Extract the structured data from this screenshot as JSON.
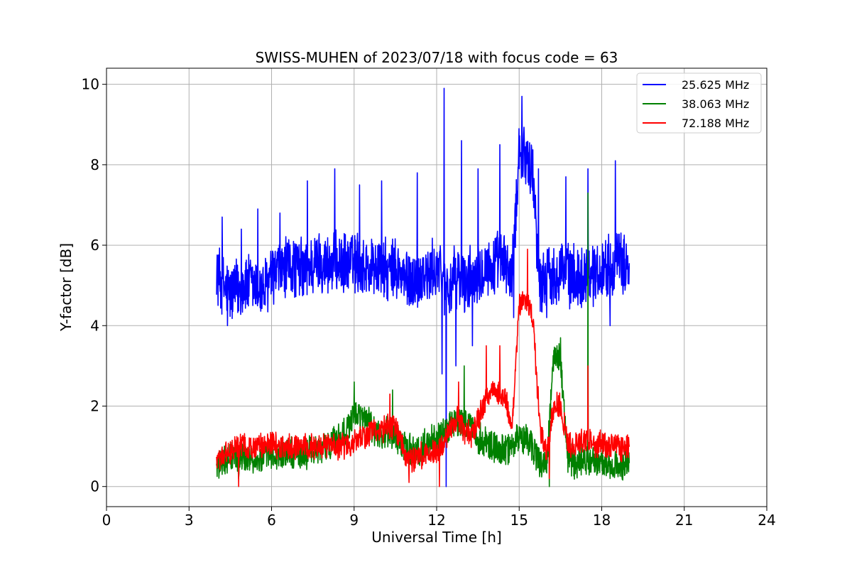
{
  "chart_data": {
    "type": "line",
    "title": "SWISS-MUHEN of 2023/07/18 with focus code = 63",
    "xlabel": "Universal Time [h]",
    "ylabel": "Y-factor [dB]",
    "xlim": [
      0,
      24
    ],
    "ylim": [
      -0.5,
      10.4
    ],
    "xticks": [
      0,
      3,
      6,
      9,
      12,
      15,
      18,
      21,
      24
    ],
    "yticks": [
      0,
      2,
      4,
      6,
      8,
      10
    ],
    "grid": true,
    "legend_position": "top-right",
    "series": [
      {
        "name": "25.625 MHz",
        "color": "#0000ff",
        "x": [
          4.0,
          4.25,
          4.5,
          4.75,
          5.0,
          5.25,
          5.5,
          5.75,
          6.0,
          6.25,
          6.5,
          6.75,
          7.0,
          7.25,
          7.5,
          7.75,
          8.0,
          8.25,
          8.5,
          8.75,
          9.0,
          9.25,
          9.5,
          9.75,
          10.0,
          10.25,
          10.5,
          10.75,
          11.0,
          11.25,
          11.5,
          11.75,
          12.0,
          12.25,
          12.5,
          12.75,
          13.0,
          13.25,
          13.5,
          13.75,
          14.0,
          14.25,
          14.5,
          14.75,
          15.0,
          15.25,
          15.5,
          15.75,
          16.0,
          16.25,
          16.5,
          16.75,
          17.0,
          17.25,
          17.5,
          17.75,
          18.0,
          18.25,
          18.5,
          18.75,
          19.0
        ],
        "y": [
          5.3,
          5.0,
          4.8,
          4.9,
          5.0,
          5.0,
          4.9,
          4.9,
          5.2,
          5.3,
          5.4,
          5.5,
          5.4,
          5.4,
          5.5,
          5.6,
          5.5,
          5.6,
          5.5,
          5.5,
          5.6,
          5.5,
          5.4,
          5.5,
          5.4,
          5.3,
          5.4,
          5.2,
          5.1,
          5.1,
          5.3,
          5.2,
          5.5,
          5.1,
          4.9,
          5.3,
          5.0,
          5.2,
          5.4,
          5.5,
          5.4,
          5.6,
          5.5,
          5.2,
          8.5,
          8.2,
          7.8,
          5.0,
          5.3,
          5.2,
          5.5,
          5.3,
          5.2,
          5.2,
          5.4,
          5.3,
          5.4,
          5.5,
          5.6,
          5.5,
          5.6
        ],
        "spikes": [
          [
            4.2,
            6.7
          ],
          [
            4.9,
            6.4
          ],
          [
            5.5,
            6.9
          ],
          [
            6.3,
            6.8
          ],
          [
            7.3,
            7.6
          ],
          [
            8.3,
            7.9
          ],
          [
            9.2,
            7.5
          ],
          [
            10.0,
            7.6
          ],
          [
            11.3,
            7.8
          ],
          [
            12.27,
            9.9
          ],
          [
            12.9,
            8.6
          ],
          [
            13.5,
            7.9
          ],
          [
            14.3,
            8.5
          ],
          [
            15.1,
            9.7
          ],
          [
            15.7,
            7.9
          ],
          [
            16.7,
            7.7
          ],
          [
            17.5,
            7.9
          ],
          [
            18.5,
            8.1
          ]
        ],
        "dips": [
          [
            4.4,
            4.0
          ],
          [
            12.2,
            2.8
          ],
          [
            12.35,
            0.0
          ],
          [
            12.7,
            3.0
          ],
          [
            13.3,
            3.5
          ],
          [
            14.8,
            4.2
          ],
          [
            16.0,
            4.2
          ],
          [
            18.3,
            4.0
          ]
        ]
      },
      {
        "name": "38.063 MHz",
        "color": "#008000",
        "x": [
          4.0,
          4.25,
          4.5,
          4.75,
          5.0,
          5.25,
          5.5,
          5.75,
          6.0,
          6.25,
          6.5,
          6.75,
          7.0,
          7.25,
          7.5,
          7.75,
          8.0,
          8.25,
          8.5,
          8.75,
          9.0,
          9.25,
          9.5,
          9.75,
          10.0,
          10.25,
          10.5,
          10.75,
          11.0,
          11.25,
          11.5,
          11.75,
          12.0,
          12.25,
          12.5,
          12.75,
          13.0,
          13.25,
          13.5,
          13.75,
          14.0,
          14.25,
          14.5,
          14.75,
          15.0,
          15.25,
          15.5,
          15.75,
          16.0,
          16.25,
          16.5,
          16.75,
          17.0,
          17.25,
          17.5,
          17.75,
          18.0,
          18.25,
          18.5,
          18.75,
          19.0
        ],
        "y": [
          0.6,
          0.6,
          0.7,
          0.7,
          0.7,
          0.7,
          0.7,
          0.7,
          0.8,
          0.8,
          0.8,
          0.8,
          0.8,
          0.8,
          0.9,
          0.9,
          1.0,
          1.1,
          1.3,
          1.4,
          1.8,
          1.7,
          1.6,
          1.3,
          1.2,
          1.4,
          1.3,
          1.0,
          0.9,
          0.9,
          1.0,
          1.1,
          1.2,
          1.3,
          1.5,
          1.6,
          1.6,
          1.4,
          1.2,
          1.1,
          1.0,
          0.9,
          0.9,
          1.0,
          1.3,
          1.2,
          1.0,
          0.6,
          0.5,
          3.2,
          3.2,
          0.7,
          0.6,
          0.6,
          0.7,
          0.6,
          0.6,
          0.5,
          0.5,
          0.5,
          0.6
        ],
        "spikes": [
          [
            9.0,
            2.6
          ],
          [
            10.4,
            2.4
          ],
          [
            13.0,
            3.0
          ],
          [
            16.5,
            3.7
          ],
          [
            17.5,
            7.3
          ]
        ],
        "dips": [
          [
            4.8,
            0.2
          ],
          [
            16.1,
            0.0
          ],
          [
            18.3,
            0.2
          ]
        ]
      },
      {
        "name": "72.188 MHz",
        "color": "#ff0000",
        "x": [
          4.0,
          4.25,
          4.5,
          4.75,
          5.0,
          5.25,
          5.5,
          5.75,
          6.0,
          6.25,
          6.5,
          6.75,
          7.0,
          7.25,
          7.5,
          7.75,
          8.0,
          8.25,
          8.5,
          8.75,
          9.0,
          9.25,
          9.5,
          9.75,
          10.0,
          10.25,
          10.5,
          10.75,
          11.0,
          11.25,
          11.5,
          11.75,
          12.0,
          12.25,
          12.5,
          12.75,
          13.0,
          13.25,
          13.5,
          13.75,
          14.0,
          14.25,
          14.5,
          14.75,
          15.0,
          15.25,
          15.5,
          15.75,
          16.0,
          16.25,
          16.5,
          16.75,
          17.0,
          17.25,
          17.5,
          17.75,
          18.0,
          18.25,
          18.5,
          18.75,
          19.0
        ],
        "y": [
          0.6,
          0.8,
          0.9,
          1.0,
          1.0,
          1.0,
          1.0,
          1.0,
          1.1,
          1.0,
          1.0,
          1.0,
          1.0,
          1.0,
          1.0,
          1.0,
          1.0,
          1.0,
          1.0,
          1.0,
          1.1,
          1.2,
          1.3,
          1.4,
          1.4,
          1.5,
          1.5,
          1.0,
          0.6,
          0.7,
          0.8,
          0.8,
          0.9,
          1.0,
          1.5,
          1.7,
          1.4,
          1.3,
          1.6,
          2.1,
          2.4,
          2.3,
          2.2,
          1.5,
          4.5,
          4.6,
          4.2,
          1.5,
          0.8,
          2.0,
          2.0,
          1.1,
          1.0,
          1.1,
          1.2,
          1.0,
          1.1,
          1.0,
          1.0,
          0.9,
          1.0
        ],
        "spikes": [
          [
            10.3,
            2.3
          ],
          [
            12.8,
            2.6
          ],
          [
            13.8,
            3.5
          ],
          [
            14.3,
            3.5
          ],
          [
            15.3,
            5.9
          ],
          [
            17.5,
            3.0
          ]
        ],
        "dips": [
          [
            4.8,
            0.0
          ],
          [
            11.0,
            0.1
          ],
          [
            12.1,
            0.0
          ],
          [
            16.1,
            0.2
          ]
        ]
      }
    ]
  }
}
